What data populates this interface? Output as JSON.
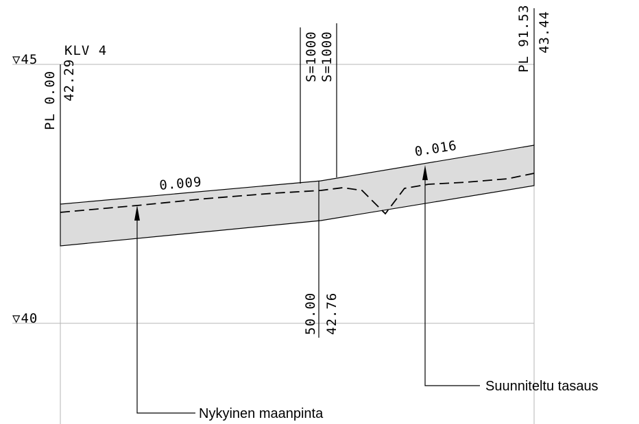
{
  "levels": {
    "upper": {
      "symbol": "▽",
      "value": "45"
    },
    "lower": {
      "symbol": "▽",
      "value": "40"
    }
  },
  "section_label": "KLV 4",
  "stations": {
    "start": {
      "chainage": "PL 0.00",
      "elevation": "42.29"
    },
    "middle": {
      "chainage": "50.00",
      "elevation": "42.76"
    },
    "end": {
      "chainage": "PL 91.53",
      "elevation": "43.44"
    }
  },
  "curve_labels": {
    "left": "S=1000",
    "right": "S=1000"
  },
  "gradients": {
    "left": "0.009",
    "right": "0.016"
  },
  "annotations": {
    "existing_ground": "Nykyinen maanpinta",
    "planned_grade": "Suunniteltu tasaus"
  },
  "colors": {
    "band_fill": "#dcdcdc",
    "grid": "#b4b4b4",
    "ink": "#000000"
  }
}
